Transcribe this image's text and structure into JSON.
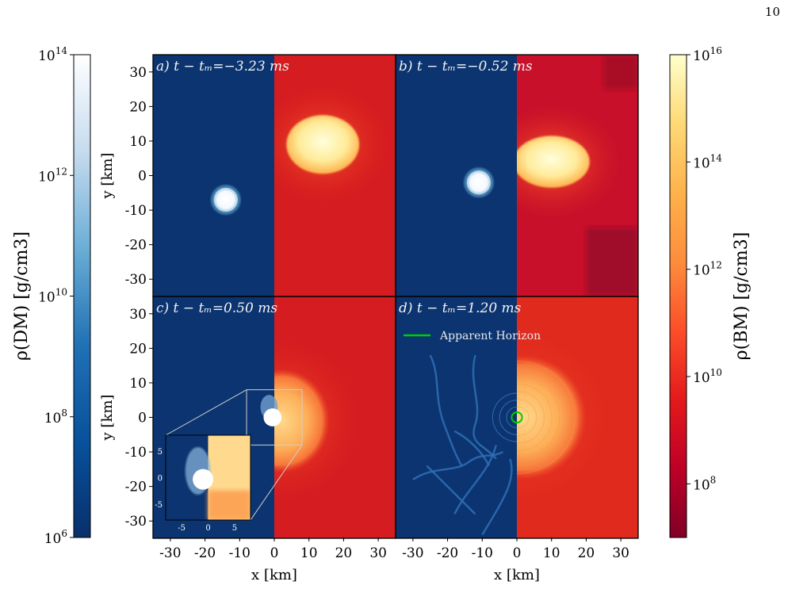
{
  "page_number": "10",
  "chart_data": {
    "type": "heatmap",
    "panels": [
      {
        "label": "a) t − tₘ=−3.23 ms",
        "time_ms": -3.23,
        "dm_core": {
          "x": -14,
          "y": -7,
          "r": 3.5
        },
        "bm_core": {
          "x": 14,
          "y": 9,
          "rx": 10.5,
          "ry": 8.5
        }
      },
      {
        "label": "b) t − tₘ=−0.52 ms",
        "time_ms": -0.52,
        "dm_core": {
          "x": -11,
          "y": -2,
          "r": 3.5
        },
        "bm_core": {
          "x": 10,
          "y": 4,
          "rx": 11,
          "ry": 7.5
        }
      },
      {
        "label": "c) t − tₘ=0.50 ms",
        "time_ms": 0.5,
        "dm_core": {
          "x": 0,
          "y": 0,
          "r": 3
        },
        "bm_core": {
          "x": 2,
          "y": -1,
          "rx": 14,
          "ry": 15
        }
      },
      {
        "label": "d) t − tₘ=1.20 ms",
        "time_ms": 1.2,
        "bm_core": {
          "x": 2,
          "y": 0,
          "rx": 18,
          "ry": 18
        },
        "apparent_horizon": {
          "x": 0,
          "y": 0,
          "r": 1.5
        }
      }
    ],
    "x_ticks": [
      "-30",
      "-20",
      "-10",
      "0",
      "10",
      "20",
      "30"
    ],
    "y_ticks": [
      "30",
      "20",
      "10",
      "0",
      "-10",
      "-20",
      "-30"
    ],
    "xlabel": "x [km]",
    "ylabel": "y [km]",
    "xlim": [
      -35,
      35
    ],
    "ylim": [
      -35,
      35
    ],
    "legend": {
      "label": "Apparent Horizon",
      "color": "#00cc00",
      "placement": "top-left of panel d"
    },
    "inset": {
      "panel": "c",
      "x_ticks": [
        "-5",
        "0",
        "5"
      ],
      "y_ticks": [
        "5",
        "0",
        "-5"
      ],
      "xlim": [
        -8,
        8
      ],
      "ylim": [
        -8,
        8
      ]
    },
    "colorbars": [
      {
        "name": "dm",
        "label": "ρ(DM) [g/cm3]",
        "scale": "log",
        "range": [
          1000000.0,
          100000000000000.0
        ],
        "ticks": [
          {
            "base": "10",
            "exp": "14"
          },
          {
            "base": "10",
            "exp": "12"
          },
          {
            "base": "10",
            "exp": "10"
          },
          {
            "base": "10",
            "exp": "8"
          },
          {
            "base": "10",
            "exp": "6"
          }
        ],
        "colors": [
          "#08306b",
          "#08519c",
          "#2171b5",
          "#6baed6",
          "#c6dbef",
          "#ffffff"
        ]
      },
      {
        "name": "bm",
        "label": "ρ(BM) [g/cm3]",
        "scale": "log",
        "range": [
          10000000.0,
          1e+16
        ],
        "ticks": [
          {
            "base": "10",
            "exp": "16"
          },
          {
            "base": "10",
            "exp": "14"
          },
          {
            "base": "10",
            "exp": "12"
          },
          {
            "base": "10",
            "exp": "10"
          },
          {
            "base": "10",
            "exp": "8"
          }
        ],
        "colors": [
          "#800026",
          "#bd0026",
          "#e31a1c",
          "#fc4e2a",
          "#fd8d3c",
          "#feb24c",
          "#fed976",
          "#ffffcc"
        ]
      }
    ]
  }
}
